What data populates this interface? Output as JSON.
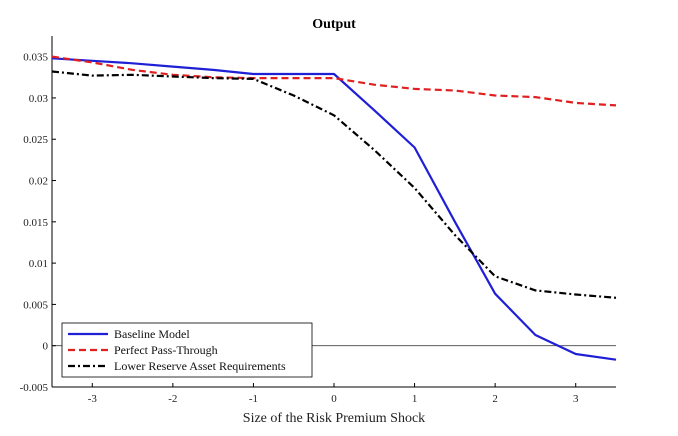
{
  "chart_data": {
    "type": "line",
    "title": "Output",
    "xlabel": "Size of the Risk Premium Shock",
    "ylabel": "",
    "xlim": [
      -3.5,
      3.5
    ],
    "ylim": [
      -0.005,
      0.0375
    ],
    "x_ticks": [
      -3,
      -2,
      -1,
      0,
      1,
      2,
      3
    ],
    "x_tick_labels": [
      "-3",
      "-2",
      "-1",
      "0",
      "1",
      "2",
      "3"
    ],
    "y_ticks": [
      -0.005,
      0,
      0.005,
      0.01,
      0.015,
      0.02,
      0.025,
      0.03,
      0.035
    ],
    "y_tick_labels": [
      "-0.005",
      "0",
      "0.005",
      "0.01",
      "0.015",
      "0.02",
      "0.025",
      "0.03",
      "0.035"
    ],
    "grid": false,
    "zero_line": true,
    "legend_position": "bottom-left",
    "series": [
      {
        "name": "Baseline Model",
        "color": "#1f1fd6",
        "dash": "solid",
        "x": [
          -3.5,
          -3,
          -2.5,
          -2,
          -1.5,
          -1,
          -0.5,
          0,
          0.5,
          1,
          1.5,
          2,
          2.5,
          3,
          3.5
        ],
        "values": [
          0.0348,
          0.0345,
          0.0342,
          0.0338,
          0.0334,
          0.0329,
          0.0329,
          0.0329,
          0.0285,
          0.024,
          0.015,
          0.0063,
          0.0013,
          -0.001,
          -0.0017
        ]
      },
      {
        "name": "Perfect Pass-Through",
        "color": "#e02020",
        "dash": "dashed",
        "x": [
          -3.5,
          -3,
          -2.5,
          -2,
          -1.5,
          -1,
          -0.5,
          0,
          0.5,
          1,
          1.5,
          2,
          2.5,
          3,
          3.5
        ],
        "values": [
          0.035,
          0.0343,
          0.0334,
          0.0328,
          0.0325,
          0.0324,
          0.0324,
          0.0324,
          0.0316,
          0.0311,
          0.0309,
          0.0303,
          0.0301,
          0.0294,
          0.0291
        ]
      },
      {
        "name": "Lower Reserve Asset Requirements",
        "color": "#000000",
        "dash": "dashdot",
        "x": [
          -3.5,
          -3,
          -2.5,
          -2,
          -1.5,
          -1,
          -0.5,
          0,
          0.5,
          1,
          1.5,
          2,
          2.5,
          3,
          3.5
        ],
        "values": [
          0.0332,
          0.0327,
          0.0328,
          0.0326,
          0.0324,
          0.0323,
          0.0303,
          0.0279,
          0.0237,
          0.0191,
          0.0134,
          0.0084,
          0.0067,
          0.0062,
          0.0058
        ]
      }
    ]
  }
}
